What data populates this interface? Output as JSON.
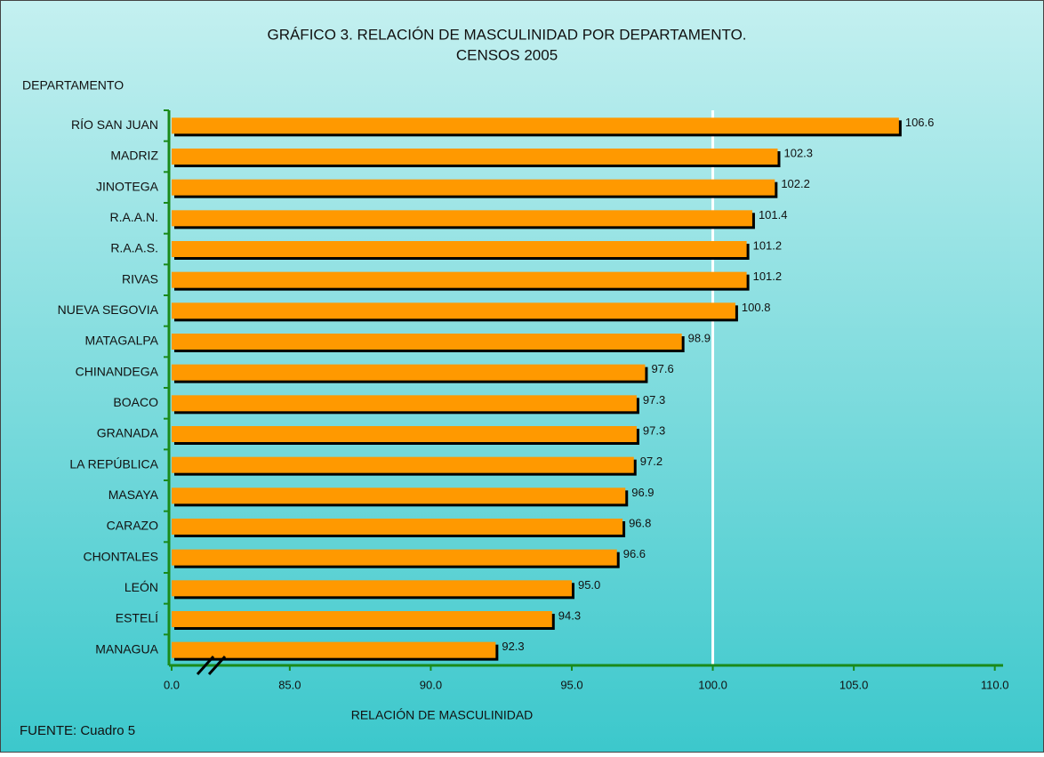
{
  "chart_data": {
    "type": "bar",
    "orientation": "horizontal",
    "title": "GRÁFICO 3. RELACIÓN DE MASCULINIDAD POR DEPARTAMENTO.",
    "subtitle": "CENSOS 2005",
    "y_axis_label": "DEPARTAMENTO",
    "x_axis_label": "RELACIÓN DE MASCULINIDAD",
    "source": "FUENTE: Cuadro 5",
    "categories": [
      "RÍO SAN JUAN",
      "MADRIZ",
      "JINOTEGA",
      "R.A.A.N.",
      "R.A.A.S.",
      "RIVAS",
      "NUEVA SEGOVIA",
      "MATAGALPA",
      "CHINANDEGA",
      "BOACO",
      "GRANADA",
      "LA REPÚBLICA",
      "MASAYA",
      "CARAZO",
      "CHONTALES",
      "LEÓN",
      "ESTELÍ",
      "MANAGUA"
    ],
    "values": [
      106.6,
      102.3,
      102.2,
      101.4,
      101.2,
      101.2,
      100.8,
      98.9,
      97.6,
      97.3,
      97.3,
      97.2,
      96.9,
      96.8,
      96.6,
      95.0,
      94.3,
      92.3
    ],
    "value_labels": [
      "106.6",
      "102.3",
      "102.2",
      "101.4",
      "101.2",
      "101.2",
      "100.8",
      "98.9",
      "97.6",
      "97.3",
      "97.3",
      "97.2",
      "96.9",
      "96.8",
      "96.6",
      "95.0",
      "94.3",
      "92.3"
    ],
    "color": "#ff9900",
    "xlim": [
      0,
      110
    ],
    "axis_break": [
      0,
      81
    ],
    "xticks": [
      {
        "value": 0,
        "label": "0.0"
      },
      {
        "value": 85,
        "label": "85.0"
      },
      {
        "value": 90,
        "label": "90.0"
      },
      {
        "value": 95,
        "label": "95.0"
      },
      {
        "value": 100,
        "label": "100.0"
      },
      {
        "value": 105,
        "label": "105.0"
      },
      {
        "value": 110,
        "label": "110.0"
      }
    ],
    "reference_line": 100
  }
}
